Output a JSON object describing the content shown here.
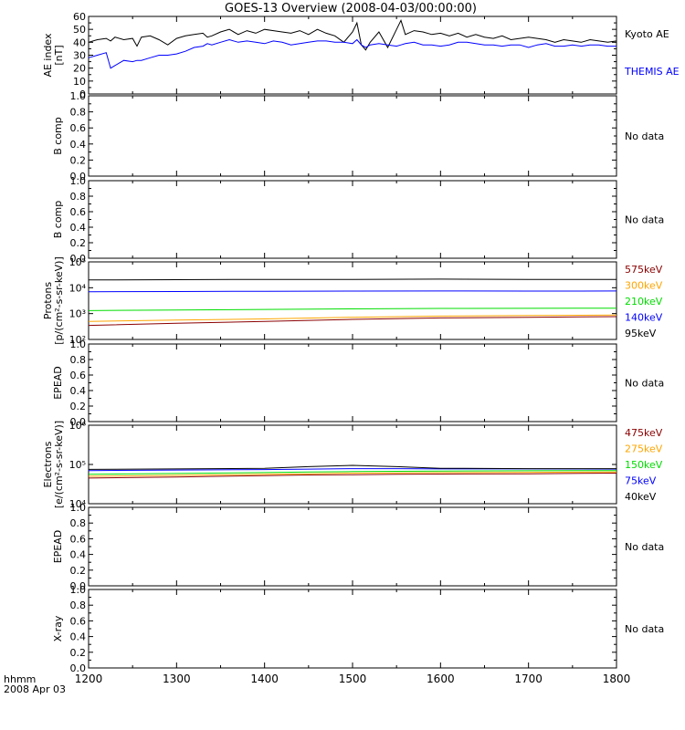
{
  "title": "GOES-13 Overview (2008-04-03/00:00:00)",
  "time_axis": {
    "label_line1": "hhmm",
    "label_line2": "2008 Apr 03",
    "ticks": [
      "1200",
      "1300",
      "1400",
      "1500",
      "1600",
      "1700",
      "1800"
    ],
    "range_hhmm": [
      1200,
      1800
    ]
  },
  "colors": {
    "black": "#000000",
    "blue": "#0000ff",
    "green": "#00dd00",
    "orange": "#ffa500",
    "darkred": "#8b0000"
  },
  "chart_data": [
    {
      "type": "line",
      "ylabel": [
        "AE index",
        "[nT]"
      ],
      "ylim": [
        0,
        60
      ],
      "yticks": [
        "0",
        "10",
        "20",
        "30",
        "40",
        "50",
        "60"
      ],
      "x_hours": [
        12.0,
        12.1,
        12.2,
        12.25,
        12.3,
        12.4,
        12.5,
        12.55,
        12.6,
        12.7,
        12.8,
        12.9,
        13.0,
        13.1,
        13.2,
        13.3,
        13.35,
        13.4,
        13.5,
        13.6,
        13.7,
        13.8,
        13.9,
        14.0,
        14.1,
        14.2,
        14.3,
        14.4,
        14.5,
        14.6,
        14.7,
        14.8,
        14.9,
        15.0,
        15.05,
        15.1,
        15.15,
        15.2,
        15.3,
        15.4,
        15.5,
        15.55,
        15.6,
        15.7,
        15.8,
        15.9,
        16.0,
        16.1,
        16.2,
        16.3,
        16.4,
        16.5,
        16.6,
        16.7,
        16.8,
        16.9,
        17.0,
        17.1,
        17.2,
        17.3,
        17.4,
        17.5,
        17.6,
        17.7,
        17.8,
        17.9,
        18.0
      ],
      "series": [
        {
          "name": "Kyoto AE",
          "color": "#000000",
          "values": [
            40,
            42,
            43,
            41,
            44,
            42,
            43,
            37,
            44,
            45,
            42,
            38,
            43,
            45,
            46,
            47,
            44,
            45,
            48,
            50,
            46,
            49,
            47,
            50,
            49,
            48,
            47,
            49,
            46,
            50,
            47,
            45,
            40,
            48,
            55,
            38,
            34,
            40,
            48,
            36,
            50,
            57,
            46,
            49,
            48,
            46,
            47,
            45,
            47,
            44,
            46,
            44,
            43,
            45,
            42,
            43,
            44,
            43,
            42,
            40,
            42,
            41,
            40,
            42,
            41,
            40,
            41
          ]
        },
        {
          "name": "THEMIS AE",
          "color": "#0000ff",
          "values": [
            28,
            30,
            32,
            20,
            22,
            26,
            25,
            26,
            26,
            28,
            30,
            30,
            31,
            33,
            36,
            37,
            39,
            38,
            40,
            42,
            40,
            41,
            40,
            39,
            41,
            40,
            38,
            39,
            40,
            41,
            41,
            40,
            40,
            39,
            42,
            38,
            36,
            38,
            39,
            38,
            37,
            38,
            39,
            40,
            38,
            38,
            37,
            38,
            40,
            40,
            39,
            38,
            38,
            37,
            38,
            38,
            36,
            38,
            39,
            37,
            37,
            38,
            37,
            38,
            38,
            37,
            37
          ]
        }
      ]
    },
    {
      "type": "line",
      "ylabel": [
        "B comp"
      ],
      "ylim": [
        0,
        1
      ],
      "yticks": [
        "0.0",
        "0.2",
        "0.4",
        "0.6",
        "0.8",
        "1.0"
      ],
      "status": "No data",
      "series": []
    },
    {
      "type": "line",
      "ylabel": [
        "B comp"
      ],
      "ylim": [
        0,
        1
      ],
      "yticks": [
        "0.0",
        "0.2",
        "0.4",
        "0.6",
        "0.8",
        "1.0"
      ],
      "status": "No data",
      "series": []
    },
    {
      "type": "line",
      "ylabel": [
        "Protons",
        "[p/(cm²-s-sr-keV)]"
      ],
      "log_scale": true,
      "ylim": [
        100,
        100000
      ],
      "yticks": [
        "10²",
        "10³",
        "10⁴",
        "10⁵"
      ],
      "x_hours": [
        12.0,
        13.0,
        14.0,
        15.0,
        16.0,
        17.0,
        18.0
      ],
      "series": [
        {
          "name": "575keV",
          "color": "#8b0000",
          "values": [
            350,
            420,
            500,
            600,
            680,
            720,
            760
          ]
        },
        {
          "name": "300keV",
          "color": "#ffa500",
          "values": [
            500,
            560,
            620,
            720,
            800,
            840,
            880
          ]
        },
        {
          "name": "210keV",
          "color": "#00dd00",
          "values": [
            1300,
            1380,
            1450,
            1520,
            1580,
            1600,
            1620
          ]
        },
        {
          "name": "140keV",
          "color": "#0000ff",
          "values": [
            7000,
            7100,
            7300,
            7400,
            7500,
            7400,
            7500
          ]
        },
        {
          "name": "95keV",
          "color": "#000000",
          "values": [
            20000,
            20500,
            21000,
            21000,
            21500,
            21000,
            21000
          ]
        }
      ]
    },
    {
      "type": "line",
      "ylabel": [
        "EPEAD"
      ],
      "ylim": [
        0,
        1
      ],
      "yticks": [
        "0.0",
        "0.2",
        "0.4",
        "0.6",
        "0.8",
        "1.0"
      ],
      "status": "No data",
      "series": []
    },
    {
      "type": "line",
      "ylabel": [
        "Electrons",
        "[e/(cm²-s-sr-keV)]"
      ],
      "log_scale": true,
      "ylim": [
        10000,
        1000000
      ],
      "yticks": [
        "10⁴",
        "10⁵",
        "10⁶"
      ],
      "x_hours": [
        12.0,
        13.0,
        14.0,
        14.5,
        15.0,
        15.5,
        16.0,
        17.0,
        18.0
      ],
      "series": [
        {
          "name": "475keV",
          "color": "#8b0000",
          "values": [
            45000,
            48000,
            52000,
            54000,
            55000,
            56000,
            57000,
            58000,
            60000
          ]
        },
        {
          "name": "275keV",
          "color": "#ffa500",
          "values": [
            50000,
            53000,
            56000,
            58000,
            60000,
            61000,
            62000,
            63000,
            64000
          ]
        },
        {
          "name": "150keV",
          "color": "#00dd00",
          "values": [
            56000,
            59000,
            62000,
            64000,
            66000,
            67000,
            68000,
            69000,
            70000
          ]
        },
        {
          "name": "75keV",
          "color": "#0000ff",
          "values": [
            70000,
            72000,
            74000,
            76000,
            78000,
            78000,
            77000,
            77000,
            76000
          ]
        },
        {
          "name": "40keV",
          "color": "#000000",
          "values": [
            75000,
            77000,
            80000,
            88000,
            95000,
            88000,
            80000,
            78000,
            78000
          ]
        }
      ]
    },
    {
      "type": "line",
      "ylabel": [
        "EPEAD"
      ],
      "ylim": [
        0,
        1
      ],
      "yticks": [
        "0.0",
        "0.2",
        "0.4",
        "0.6",
        "0.8",
        "1.0"
      ],
      "status": "No data",
      "series": []
    },
    {
      "type": "line",
      "ylabel": [
        "X-ray"
      ],
      "ylim": [
        0,
        1
      ],
      "yticks": [
        "0.0",
        "0.2",
        "0.4",
        "0.6",
        "0.8",
        "1.0"
      ],
      "status": "No data",
      "series": []
    }
  ]
}
